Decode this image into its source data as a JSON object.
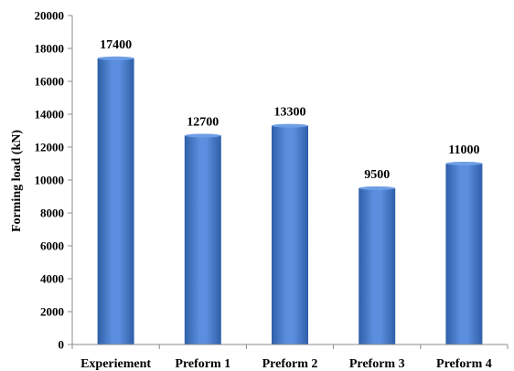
{
  "chart_data": {
    "type": "bar",
    "categories": [
      "Experiement",
      "Preform 1",
      "Preform 2",
      "Preform 3",
      "Preform 4"
    ],
    "values": [
      17400,
      12700,
      13300,
      9500,
      11000
    ],
    "data_labels": [
      "17400",
      "12700",
      "13300",
      "9500",
      "11000"
    ],
    "title": "",
    "xlabel": "",
    "ylabel": "Forming load (kN)",
    "ylim": [
      0,
      20000
    ],
    "yticks": [
      0,
      2000,
      4000,
      6000,
      8000,
      10000,
      12000,
      14000,
      16000,
      18000,
      20000
    ],
    "grid": false,
    "legend": "none",
    "bar_color": "#4a7fd0",
    "bar_color_dark": "#2f5fa8",
    "bar_color_light": "#6f9ee6"
  }
}
